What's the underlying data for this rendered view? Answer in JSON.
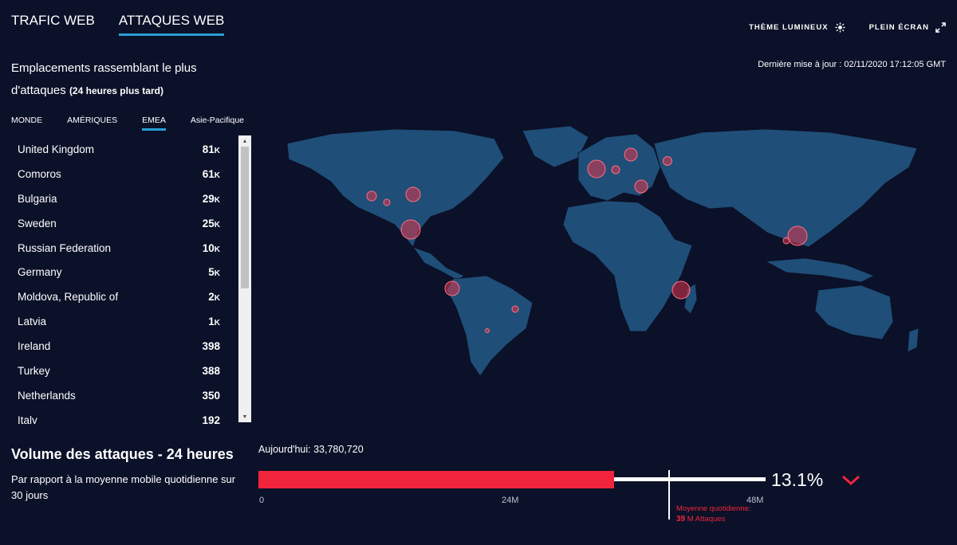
{
  "tabs": [
    {
      "label": "TRAFIC WEB",
      "active": false
    },
    {
      "label": "ATTAQUES WEB",
      "active": true
    }
  ],
  "controls": {
    "theme": {
      "label": "THÈME LUMINEUX",
      "icon": "sun-icon"
    },
    "fullscreen": {
      "label": "PLEIN ÉCRAN",
      "icon": "expand-icon"
    }
  },
  "section": {
    "title": "Emplacements rassemblant le plus d'attaques",
    "subtitle": "(24 heures plus tard)"
  },
  "last_update": "Dernière mise à jour : 02/11/2020 17:12:05 GMT",
  "regions": [
    {
      "label": "MONDE",
      "active": false
    },
    {
      "label": "AMÉRIQUES",
      "active": false
    },
    {
      "label": "EMEA",
      "active": true
    },
    {
      "label": "Asie-Pacifique",
      "active": false
    }
  ],
  "countries": [
    {
      "name": "United Kingdom",
      "value": "81",
      "unit": "K"
    },
    {
      "name": "Comoros",
      "value": "61",
      "unit": "K"
    },
    {
      "name": "Bulgaria",
      "value": "29",
      "unit": "K"
    },
    {
      "name": "Sweden",
      "value": "25",
      "unit": "K"
    },
    {
      "name": "Russian Federation",
      "value": "10",
      "unit": "K"
    },
    {
      "name": "Germany",
      "value": "5",
      "unit": "K"
    },
    {
      "name": "Moldova, Republic of",
      "value": "2",
      "unit": "K"
    },
    {
      "name": "Latvia",
      "value": "1",
      "unit": "K"
    },
    {
      "name": "Ireland",
      "value": "398",
      "unit": ""
    },
    {
      "name": "Turkey",
      "value": "388",
      "unit": ""
    },
    {
      "name": "Netherlands",
      "value": "350",
      "unit": ""
    },
    {
      "name": "Italy",
      "value": "192",
      "unit": ""
    }
  ],
  "volume": {
    "title": "Volume des attaques - 24 heures",
    "desc": "Par rapport à la moyenne mobile quotidienne sur 30 jours",
    "today_label": "Aujourd'hui: 33,780,720",
    "today_value": 33780720,
    "avg_label": "Moyenne quotidienne:",
    "avg_value": "39",
    "avg_unit": "M Attaques",
    "ticks": [
      "0",
      "24M",
      "48M"
    ],
    "pct": "13.1%",
    "trend": "down",
    "accent": "#f0253c"
  },
  "colors": {
    "background": "#0b1128",
    "map_land": "#1f4e78",
    "tab_underline": "#2a9fd6",
    "hotspot": "#e0354b"
  }
}
